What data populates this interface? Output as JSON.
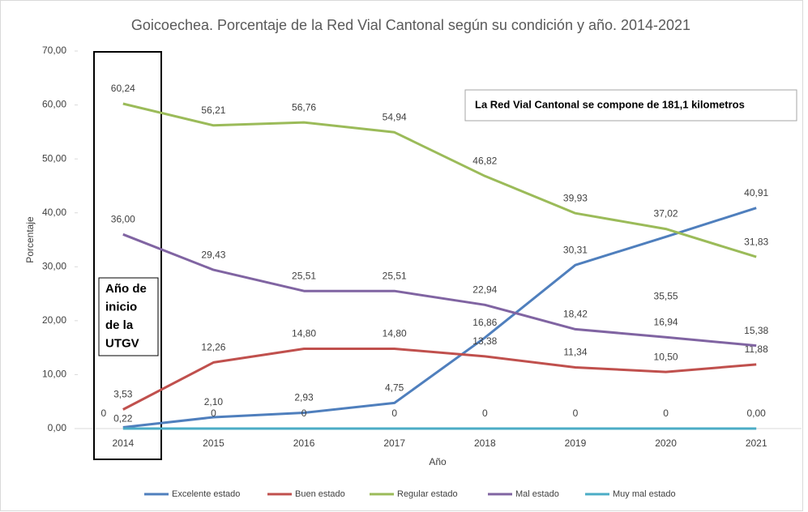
{
  "chart_data": {
    "type": "line",
    "title": "Goicoechea. Porcentaje de la Red Vial Cantonal según su condición y año. 2014-2021",
    "x_label": "Año",
    "y_label": "Porcentaje",
    "categories": [
      "2014",
      "2015",
      "2016",
      "2017",
      "2018",
      "2019",
      "2020",
      "2021"
    ],
    "ylim": [
      0,
      70
    ],
    "yticks": [
      {
        "value": 0,
        "label": "0,00"
      },
      {
        "value": 10,
        "label": "10,00"
      },
      {
        "value": 20,
        "label": "20,00"
      },
      {
        "value": 30,
        "label": "30,00"
      },
      {
        "value": 40,
        "label": "40,00"
      },
      {
        "value": 50,
        "label": "50,00"
      },
      {
        "value": 60,
        "label": "60,00"
      },
      {
        "value": 70,
        "label": "70,00"
      }
    ],
    "grid": false,
    "legend": "bottom",
    "note": "La Red Vial Cantonal se compone de 181,1 kilometros",
    "highlight_note": [
      "Año de",
      "inicio",
      "de la",
      "UTGV"
    ],
    "series": [
      {
        "name": "Excelente estado",
        "color": "#4f7fbd",
        "values": [
          0.22,
          2.1,
          2.93,
          4.75,
          16.86,
          30.31,
          35.55,
          40.91
        ],
        "value_labels": [
          "0,22",
          "2,10",
          "2,93",
          "4,75",
          "16,86",
          "30,31",
          "35,55",
          "40,91"
        ]
      },
      {
        "name": "Buen estado",
        "color": "#c0504d",
        "values": [
          3.53,
          12.26,
          14.8,
          14.8,
          13.38,
          11.34,
          10.5,
          11.88
        ],
        "value_labels": [
          "3,53",
          "12,26",
          "14,80",
          "14,80",
          "13,38",
          "11,34",
          "10,50",
          "11,88"
        ]
      },
      {
        "name": "Regular estado",
        "color": "#9bbb59",
        "values": [
          60.24,
          56.21,
          56.76,
          54.94,
          46.82,
          39.93,
          37.02,
          31.83
        ],
        "value_labels": [
          "60,24",
          "56,21",
          "56,76",
          "54,94",
          "46,82",
          "39,93",
          "37,02",
          "31,83"
        ]
      },
      {
        "name": "Mal estado",
        "color": "#8064a2",
        "values": [
          36.0,
          29.43,
          25.51,
          25.51,
          22.94,
          18.42,
          16.94,
          15.38
        ],
        "value_labels": [
          "36,00",
          "29,43",
          "25,51",
          "25,51",
          "22,94",
          "18,42",
          "16,94",
          "15,38"
        ]
      },
      {
        "name": "Muy mal estado",
        "color": "#4bacc6",
        "values": [
          0,
          0,
          0,
          0,
          0,
          0,
          0,
          0
        ],
        "value_labels": [
          "0",
          "0",
          "0",
          "0",
          "0",
          "0",
          "0",
          "0,00"
        ]
      }
    ]
  }
}
